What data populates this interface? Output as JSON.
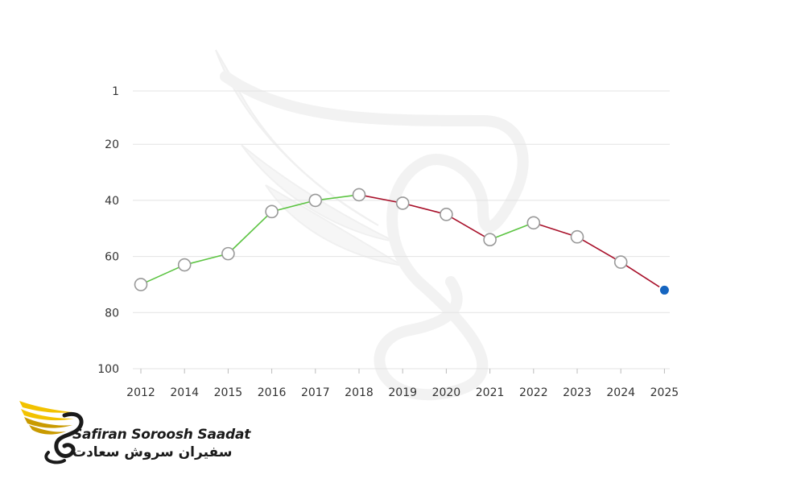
{
  "chart_data": {
    "type": "line",
    "x": [
      "2012",
      "2014",
      "2015",
      "2016",
      "2017",
      "2018",
      "2019",
      "2020",
      "2021",
      "2022",
      "2023",
      "2024",
      "2025"
    ],
    "y": [
      70,
      63,
      59,
      44,
      40,
      38,
      41,
      45,
      54,
      48,
      53,
      62,
      72
    ],
    "y_inverted": true,
    "ylim": [
      1,
      100
    ],
    "y_ticks": [
      1,
      20,
      40,
      60,
      80,
      100
    ],
    "grid": true,
    "colors": {
      "rising": "#5cc442",
      "falling": "#a8102a",
      "marker_fill": "#ffffff",
      "marker_stroke": "#999999",
      "last_point": "#1565c0",
      "grid": "#e3e3e3",
      "tick_text": "#333333"
    }
  },
  "logo": {
    "text_en": "Safiran Soroosh Saadat",
    "text_fa": "سفیران سروش سعادت",
    "icon": "winged-swan-logo-icon",
    "watermark": "winged-swan-watermark-icon",
    "colors": {
      "wing": "#f2c200",
      "wing_dark": "#c99a00",
      "body": "#1a1a1a"
    }
  }
}
